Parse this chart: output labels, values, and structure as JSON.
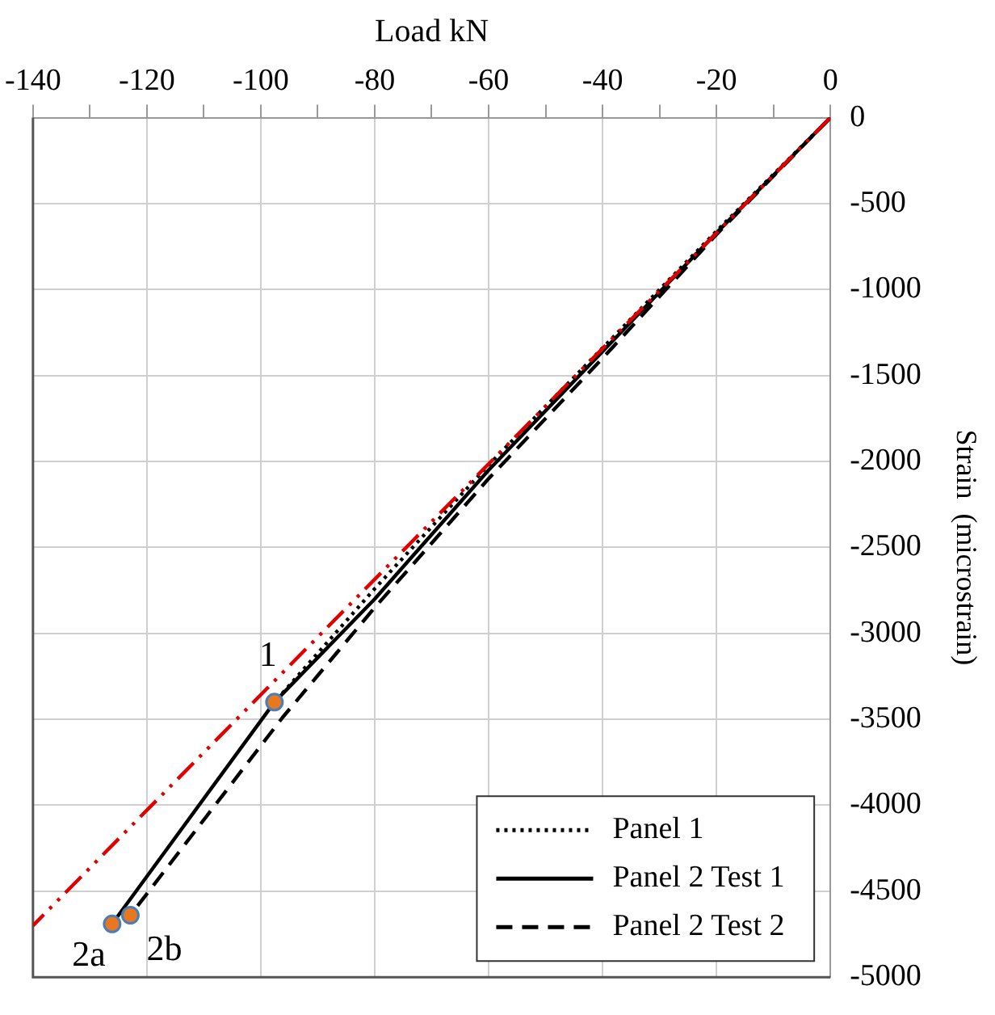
{
  "chart_data": {
    "type": "line",
    "xlabel": "Load kN",
    "ylabel": "Strain  (microstrain)",
    "xlim": [
      -140,
      0
    ],
    "xticks": [
      -140,
      {
        "value": -130,
        "label": null
      },
      -120,
      {
        "value": -110,
        "label": null
      },
      -100,
      {
        "value": -90,
        "label": null
      },
      -80,
      {
        "value": -70,
        "label": null
      },
      -60,
      {
        "value": -50,
        "label": null
      },
      -40,
      {
        "value": -30,
        "label": null
      },
      -20,
      {
        "value": -10,
        "label": null
      },
      0
    ],
    "ylim": [
      -5000,
      0
    ],
    "yticks": [
      0,
      -500,
      -1000,
      -1500,
      -2000,
      -2500,
      -3000,
      -3500,
      -4000,
      -4500,
      -5000
    ],
    "grid": true,
    "legend": "bottom right",
    "marker": "none",
    "series": [
      {
        "color": "#e00000",
        "line_style": "dashdot",
        "x": [
          0,
          -140
        ],
        "values": [
          0,
          -4700
        ]
      },
      {
        "name": "Panel 1",
        "color": "#000000",
        "line_style": "dotted",
        "x": [
          0,
          -20,
          -40,
          -60,
          -80,
          -97.6
        ],
        "values": [
          0,
          -660,
          -1340,
          -2020,
          -2740,
          -3400
        ]
      },
      {
        "name": "Panel 2 Test 1",
        "color": "#000000",
        "line_style": "solid",
        "x": [
          0,
          -20,
          -40,
          -60,
          -80,
          -97.6,
          -126.1
        ],
        "values": [
          0,
          -670,
          -1360,
          -2050,
          -2800,
          -3400,
          -4690
        ]
      },
      {
        "name": "Panel 2 Test 2",
        "color": "#000000",
        "line_style": "dashed",
        "x": [
          0,
          -20,
          -40,
          -60,
          -80,
          -96.2,
          -122.9
        ],
        "values": [
          0,
          -680,
          -1400,
          -2100,
          -2850,
          -3490,
          -4640
        ]
      },
      {
        "type": "scatter",
        "color": "#e87820",
        "marker": "circle",
        "x": [
          -97.6,
          -126.1,
          -122.9
        ],
        "values": [
          -3400,
          -4690,
          -4640
        ]
      }
    ],
    "annotations": [
      {
        "text": "1",
        "x": -97.6,
        "y": -3400
      },
      {
        "text": "2a",
        "x": -126.1,
        "y": -4690
      },
      {
        "text": "2b",
        "x": -122.9,
        "y": -4640
      }
    ]
  }
}
